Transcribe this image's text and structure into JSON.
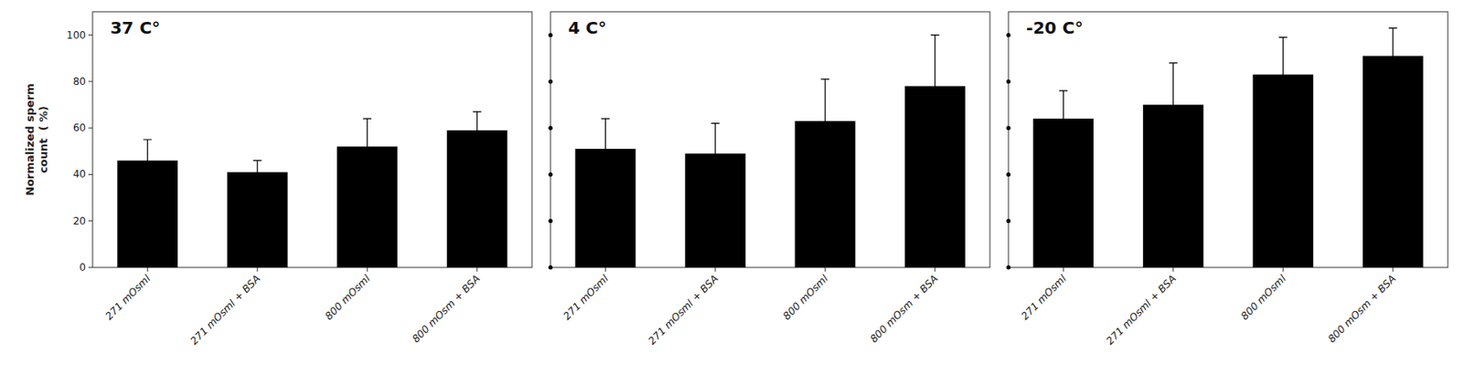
{
  "chart_data": [
    {
      "type": "bar",
      "title": "37 C°",
      "categories": [
        "271 mOsml",
        "271 mOsml + BSA",
        "800 mOsml",
        "800 mOsm + BSA"
      ],
      "values": [
        46,
        41,
        52,
        59
      ],
      "errors": [
        9,
        5,
        12,
        8
      ],
      "ylabel": "Normalized sperm\ncount  ( %)",
      "color": "#000000",
      "ylim": [
        0,
        110
      ],
      "yticks": [
        0,
        20,
        40,
        60,
        80,
        100
      ],
      "grid": false
    },
    {
      "type": "bar",
      "title": "4 C°",
      "categories": [
        "271 mOsml",
        "271 mOsml + BSA",
        "800 mOsml",
        "800 mOsm + BSA"
      ],
      "values": [
        51,
        49,
        63,
        78
      ],
      "errors": [
        13,
        13,
        18,
        22
      ],
      "color": "#000000",
      "ylim": [
        0,
        110
      ],
      "yticks": [
        0,
        20,
        40,
        60,
        80,
        100
      ],
      "grid": false,
      "tick_labels": "x"
    },
    {
      "type": "bar",
      "title": "-20 C°",
      "categories": [
        "271 mOsml",
        "271 mOsml + BSA",
        "800 mOsml",
        "800 mOsm + BSA"
      ],
      "values": [
        64,
        70,
        83,
        91
      ],
      "errors": [
        12,
        18,
        16,
        12
      ],
      "color": "#000000",
      "ylim": [
        0,
        110
      ],
      "yticks": [
        0,
        20,
        40,
        60,
        80,
        100
      ],
      "grid": false,
      "tick_labels": "x"
    }
  ]
}
